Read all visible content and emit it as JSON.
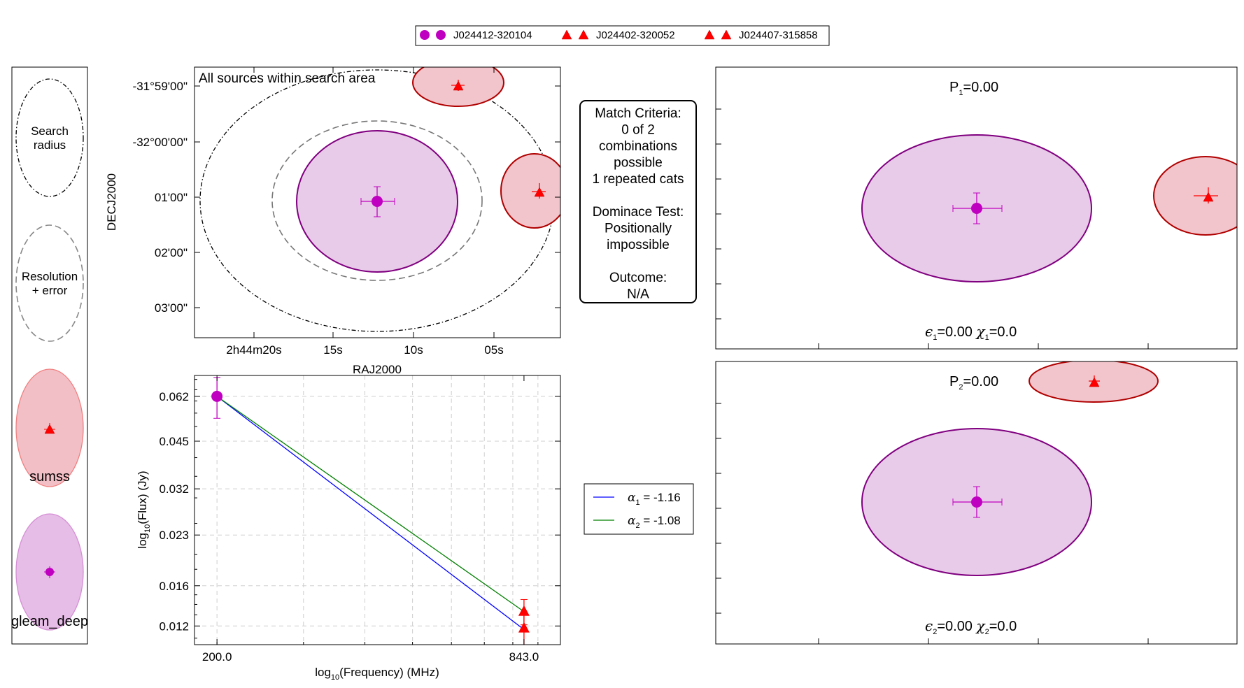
{
  "legend_top": [
    {
      "label": "J024412-320104",
      "marker": "circle",
      "color": "#c000c0"
    },
    {
      "label": "J024402-320052",
      "marker": "triangle",
      "color": "#ff0000"
    },
    {
      "label": "J024407-315858",
      "marker": "triangle",
      "color": "#ff0000"
    }
  ],
  "key_panel": {
    "search": "Search\nradius",
    "resolution": "Resolution\n+ error",
    "cat1": "sumss",
    "cat2": "gleam_deep"
  },
  "sky_panel": {
    "title": "All sources within search area",
    "xlabel": "RAJ2000",
    "ylabel": "DECJ2000",
    "xticks": [
      "2h44m20s",
      "15s",
      "10s",
      "05s"
    ],
    "yticks": [
      "-31°59'00\"",
      "-32°00'00\"",
      "01'00\"",
      "02'00\"",
      "03'00\""
    ]
  },
  "criteria_box": {
    "lines": [
      "Match Criteria:",
      "0 of 2",
      "combinations",
      "possible",
      "1 repeated cats",
      "",
      "Dominace Test:",
      "Positionally",
      "impossible",
      "",
      "Outcome:",
      "N/A"
    ]
  },
  "combo_panels": [
    {
      "p_label": "P",
      "p_sub": "1",
      "p_value": "=0.00",
      "eps_sub": "1",
      "eps_value": "=0.00",
      "chi_sub": "1",
      "chi_value": "=0.0"
    },
    {
      "p_label": "P",
      "p_sub": "2",
      "p_value": "=0.00",
      "eps_sub": "2",
      "eps_value": "=0.00",
      "chi_sub": "2",
      "chi_value": "=0.0"
    }
  ],
  "sed_legend": [
    {
      "sym": "α",
      "sub": "1",
      "text": " = -1.16",
      "color": "#0000ff"
    },
    {
      "sym": "α",
      "sub": "2",
      "text": " = -1.08",
      "color": "#008000"
    }
  ],
  "chart_data": {
    "type": "scatter",
    "xlabel": "log10(Frequency) (MHz)",
    "ylabel": "log10(Flux) (Jy)",
    "xlabel_parts": {
      "pre": "log",
      "sub": "10",
      "post": "(Frequency) (MHz)"
    },
    "ylabel_parts": {
      "pre": "log",
      "sub": "10",
      "post": "(Flux) (Jy)"
    },
    "xticks": [
      200.0,
      843.0
    ],
    "xtick_labels": [
      "200.0",
      "843.0"
    ],
    "yticks": [
      0.012,
      0.016,
      0.023,
      0.032,
      0.045,
      0.062
    ],
    "ytick_labels": [
      "0.012",
      "0.016",
      "0.023",
      "0.032",
      "0.045",
      "0.062"
    ],
    "xlim": [
      180,
      1000
    ],
    "ylim": [
      0.0105,
      0.072
    ],
    "log_x": true,
    "log_y": true,
    "grid": true,
    "points": [
      {
        "catalog": "gleam_deep",
        "x": 200.0,
        "y": 0.062,
        "yerr_hi": 0.071,
        "yerr_lo": 0.053,
        "marker": "circle",
        "color": "#c000c0"
      },
      {
        "catalog": "sumss",
        "x": 843.0,
        "y": 0.0133,
        "yerr_hi": 0.0145,
        "yerr_lo": 0.0121,
        "marker": "triangle",
        "color": "#ff0000"
      },
      {
        "catalog": "sumss",
        "x": 843.0,
        "y": 0.0118,
        "yerr_hi": 0.0131,
        "yerr_lo": 0.0105,
        "marker": "triangle",
        "color": "#ff0000"
      }
    ],
    "series": [
      {
        "name": "α1 = -1.16",
        "color": "#0000ff",
        "x": [
          200.0,
          843.0
        ],
        "y": [
          0.062,
          0.0117
        ]
      },
      {
        "name": "α2 = -1.08",
        "color": "#008000",
        "x": [
          200.0,
          843.0
        ],
        "y": [
          0.062,
          0.0133
        ]
      }
    ]
  }
}
